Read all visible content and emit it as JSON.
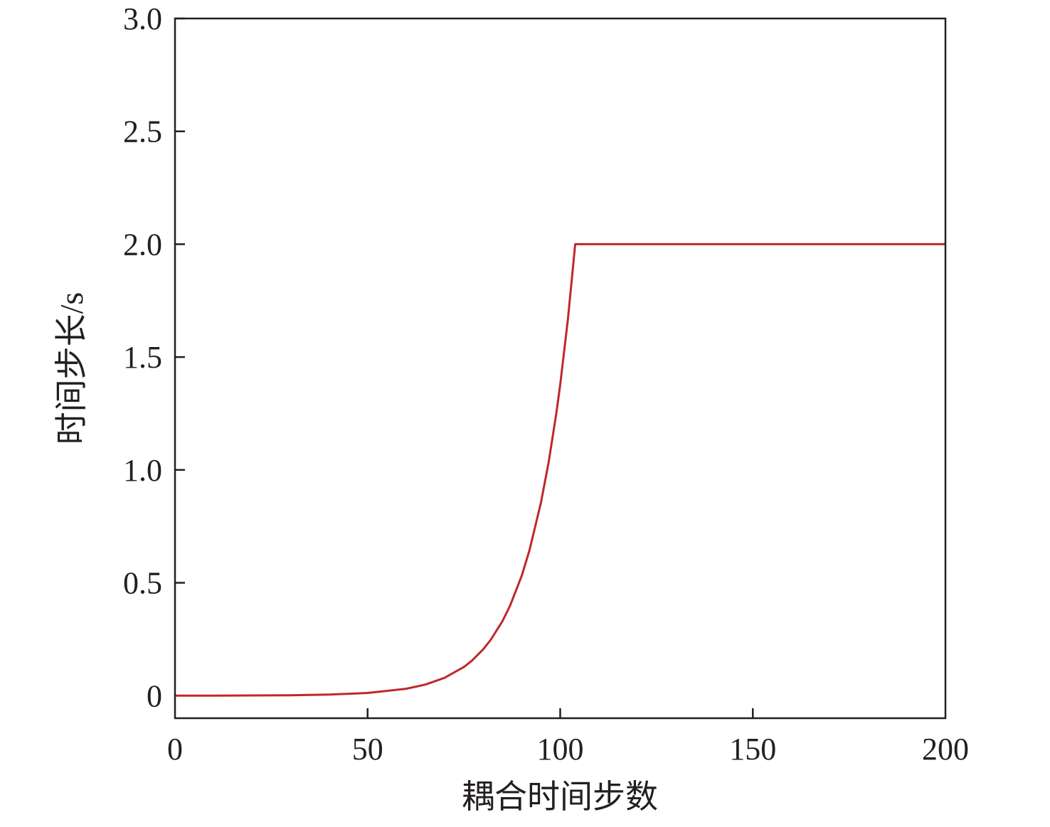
{
  "chart_data": {
    "type": "line",
    "title": "",
    "xlabel": "耦合时间步数",
    "ylabel": "时间步长/s",
    "xlim": [
      0,
      200
    ],
    "ylim": [
      -0.1,
      3.0
    ],
    "xticks": [
      0,
      50,
      100,
      150,
      200
    ],
    "xtick_labels": [
      "0",
      "50",
      "100",
      "150",
      "200"
    ],
    "yticks": [
      0,
      0.5,
      1.0,
      1.5,
      2.0,
      2.5,
      3.0
    ],
    "ytick_labels": [
      "0",
      "0.5",
      "1.0",
      "1.5",
      "2.0",
      "2.5",
      "3.0"
    ],
    "grid": false,
    "legend": "none",
    "series": [
      {
        "color": "#c0272d",
        "x": [
          0,
          10,
          20,
          30,
          40,
          50,
          60,
          65,
          70,
          75,
          77,
          80,
          82,
          85,
          87,
          90,
          92,
          95,
          97,
          99,
          100,
          102,
          103.9,
          200
        ],
        "y": [
          0.0001,
          0.00026,
          0.00067,
          0.00174,
          0.00453,
          0.0117,
          0.0305,
          0.049,
          0.0789,
          0.127,
          0.154,
          0.205,
          0.248,
          0.33,
          0.399,
          0.531,
          0.643,
          0.855,
          1.035,
          1.252,
          1.378,
          1.667,
          2.0,
          2.0
        ]
      }
    ]
  }
}
